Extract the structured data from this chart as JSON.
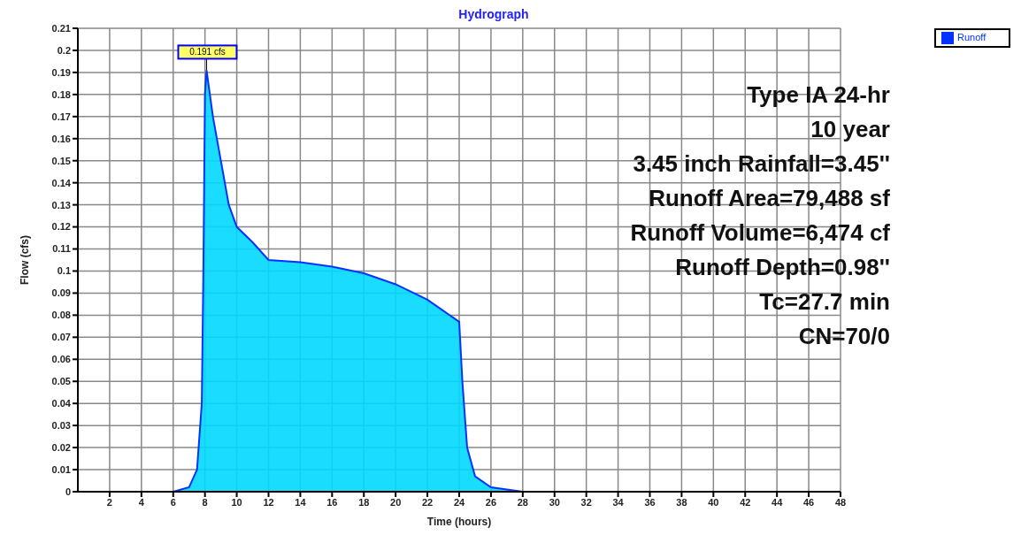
{
  "chart_data": {
    "type": "area",
    "title": "Hydrograph",
    "xlabel": "Time  (hours)",
    "ylabel": "Flow  (cfs)",
    "x": [
      0,
      6,
      7,
      7.5,
      7.8,
      7.9,
      8.0,
      8.1,
      8.5,
      9,
      9.5,
      10,
      11,
      12,
      14,
      16,
      18,
      20,
      22,
      23,
      24,
      24.2,
      24.5,
      25,
      26,
      27,
      28,
      48
    ],
    "series": [
      {
        "name": "Runoff",
        "color": "#00d8ff",
        "values": [
          0,
          0,
          0.002,
          0.01,
          0.04,
          0.1,
          0.18,
          0.191,
          0.17,
          0.15,
          0.13,
          0.12,
          0.113,
          0.105,
          0.104,
          0.102,
          0.099,
          0.094,
          0.087,
          0.082,
          0.077,
          0.05,
          0.02,
          0.007,
          0.002,
          0.001,
          0,
          0
        ]
      }
    ],
    "xlim": [
      0,
      48
    ],
    "xticks": [
      2,
      4,
      6,
      8,
      10,
      12,
      14,
      16,
      18,
      20,
      22,
      24,
      26,
      28,
      30,
      32,
      34,
      36,
      38,
      40,
      42,
      44,
      46,
      48
    ],
    "ylim": [
      0,
      0.21
    ],
    "yticks": [
      0,
      0.01,
      0.02,
      0.03,
      0.04,
      0.05,
      0.06,
      0.07,
      0.08,
      0.09,
      0.1,
      0.11,
      0.12,
      0.13,
      0.14,
      0.15,
      0.16,
      0.17,
      0.18,
      0.19,
      0.2,
      0.21
    ],
    "grid": true,
    "legend": "top right",
    "annotations": [
      {
        "text": "0.191 cfs",
        "x": 8.1,
        "y": 0.191
      },
      "Type IA 24-hr",
      "10 year",
      "3.45 inch Rainfall=3.45''",
      "Runoff Area=79,488 sf",
      "Runoff Volume=6,474 cf",
      "Runoff Depth=0.98''",
      "Tc=27.7 min",
      "CN=70/0"
    ]
  }
}
